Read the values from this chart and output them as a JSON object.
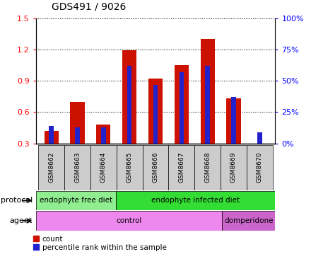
{
  "title": "GDS491 / 9026",
  "samples": [
    "GSM8662",
    "GSM8663",
    "GSM8664",
    "GSM8665",
    "GSM8666",
    "GSM8667",
    "GSM8668",
    "GSM8669",
    "GSM8670"
  ],
  "count_values": [
    0.42,
    0.7,
    0.48,
    1.19,
    0.92,
    1.05,
    1.3,
    0.73,
    0.3
  ],
  "percentile_values": [
    14,
    13,
    13,
    62,
    47,
    57,
    62,
    37,
    9
  ],
  "ylim_left": [
    0.3,
    1.5
  ],
  "ylim_right": [
    0,
    100
  ],
  "yticks_left": [
    0.3,
    0.6,
    0.9,
    1.2,
    1.5
  ],
  "yticks_right": [
    0,
    25,
    50,
    75,
    100
  ],
  "ytick_labels_right": [
    "0%",
    "25%",
    "50%",
    "75%",
    "100%"
  ],
  "protocol_groups": [
    {
      "label": "endophyte free diet",
      "start": 0,
      "end": 3,
      "color": "#90ee90"
    },
    {
      "label": "endophyte infected diet",
      "start": 3,
      "end": 9,
      "color": "#33dd33"
    }
  ],
  "agent_groups": [
    {
      "label": "control",
      "start": 0,
      "end": 7,
      "color": "#ee88ee"
    },
    {
      "label": "domperidone",
      "start": 7,
      "end": 9,
      "color": "#cc66cc"
    }
  ],
  "bar_color_red": "#cc1100",
  "bar_color_blue": "#2222cc",
  "red_bar_width": 0.55,
  "blue_bar_width": 0.18,
  "count_label": "count",
  "percentile_label": "percentile rank within the sample",
  "protocol_label": "protocol",
  "agent_label": "agent",
  "title_fontsize": 10,
  "tick_fontsize": 8,
  "sample_fontsize": 6.5,
  "row_label_fontsize": 8,
  "legend_fontsize": 7.5
}
